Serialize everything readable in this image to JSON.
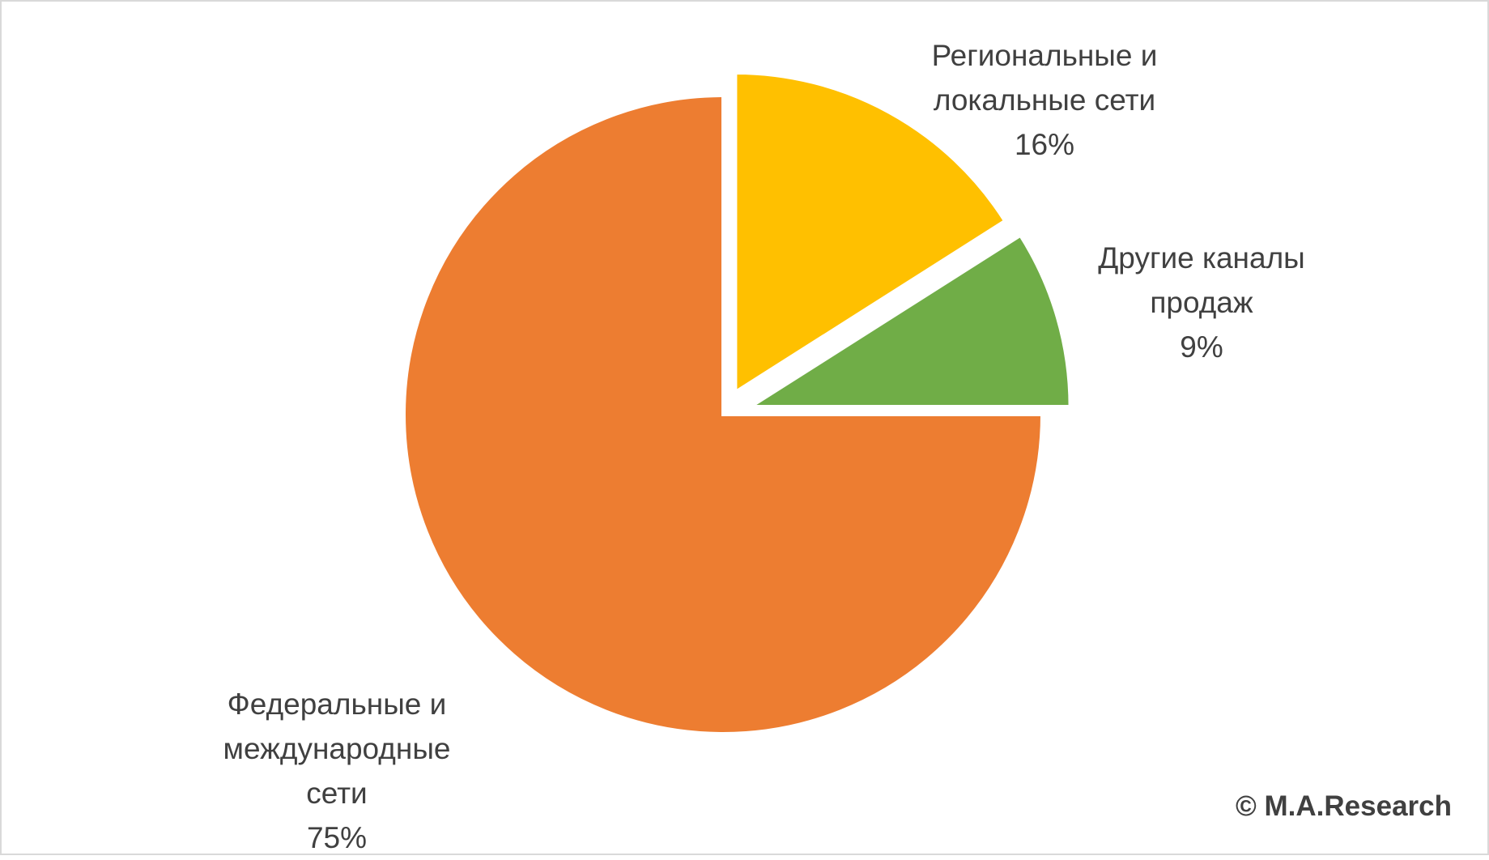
{
  "chart_data": {
    "type": "pie",
    "categories": [
      "Региональные и локальные сети",
      "Другие каналы продаж",
      "Федеральные и международные сети"
    ],
    "values": [
      16,
      9,
      75
    ],
    "value_labels": [
      "16%",
      "9%",
      "75%"
    ],
    "colors": [
      "#ffc000",
      "#70ad47",
      "#ed7d31"
    ],
    "annotation": "© M.A.Research"
  }
}
